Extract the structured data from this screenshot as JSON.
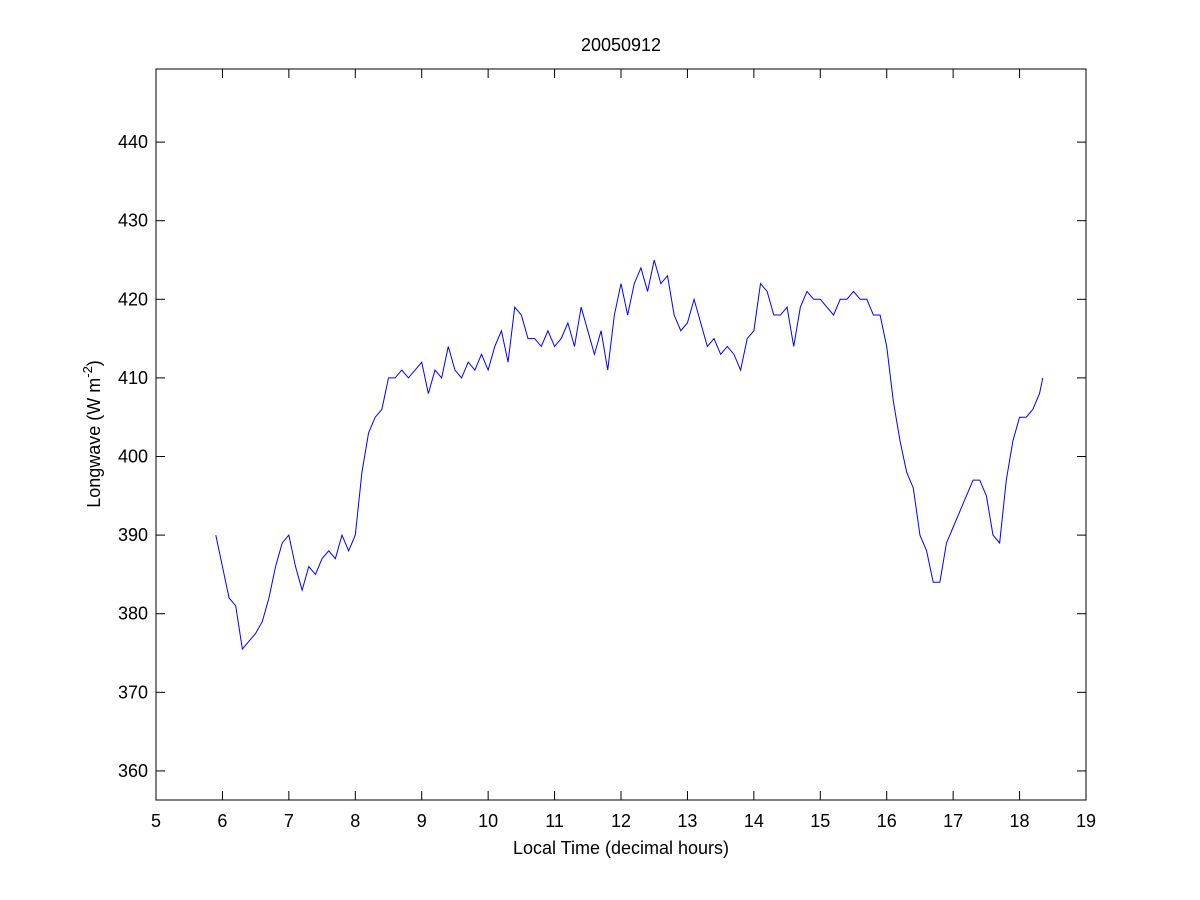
{
  "chart_data": {
    "type": "line",
    "title": "20050912",
    "xlabel": "Local Time (decimal hours)",
    "ylabel": {
      "text": "Longwave (W m",
      "sup": "-2",
      "after": ")"
    },
    "xlim": [
      5,
      19
    ],
    "xticks": [
      5,
      6,
      7,
      8,
      9,
      10,
      11,
      12,
      13,
      14,
      15,
      16,
      17,
      18,
      19
    ],
    "ylim": [
      356.3,
      449.3
    ],
    "yticks": [
      360,
      370,
      380,
      390,
      400,
      410,
      420,
      430,
      440
    ],
    "grid": false,
    "x": [
      5.9,
      6.0,
      6.1,
      6.2,
      6.3,
      6.4,
      6.5,
      6.6,
      6.7,
      6.8,
      6.9,
      7.0,
      7.1,
      7.2,
      7.3,
      7.4,
      7.5,
      7.6,
      7.7,
      7.8,
      7.9,
      8.0,
      8.1,
      8.2,
      8.3,
      8.4,
      8.5,
      8.6,
      8.7,
      8.8,
      8.9,
      9.0,
      9.1,
      9.2,
      9.3,
      9.4,
      9.5,
      9.6,
      9.7,
      9.8,
      9.9,
      10.0,
      10.1,
      10.2,
      10.3,
      10.4,
      10.5,
      10.6,
      10.7,
      10.8,
      10.9,
      11.0,
      11.1,
      11.2,
      11.3,
      11.4,
      11.5,
      11.6,
      11.7,
      11.8,
      11.9,
      12.0,
      12.1,
      12.2,
      12.3,
      12.4,
      12.5,
      12.6,
      12.7,
      12.8,
      12.9,
      13.0,
      13.1,
      13.2,
      13.3,
      13.4,
      13.5,
      13.6,
      13.7,
      13.8,
      13.9,
      14.0,
      14.1,
      14.2,
      14.3,
      14.4,
      14.5,
      14.6,
      14.7,
      14.8,
      14.9,
      15.0,
      15.1,
      15.2,
      15.3,
      15.4,
      15.5,
      15.6,
      15.7,
      15.8,
      15.9,
      16.0,
      16.1,
      16.2,
      16.3,
      16.4,
      16.5,
      16.6,
      16.7,
      16.8,
      16.9,
      17.0,
      17.1,
      17.2,
      17.3,
      17.4,
      17.5,
      17.6,
      17.7,
      17.8,
      17.9,
      18.0,
      18.1,
      18.2,
      18.3,
      18.35
    ],
    "series": [
      {
        "color": "#0000ff",
        "values": [
          390,
          386,
          382,
          381,
          375.5,
          376.5,
          377.5,
          379,
          382,
          386,
          389,
          390,
          386,
          383,
          386,
          385,
          387,
          388,
          387,
          390,
          388,
          390,
          398,
          403,
          405,
          406,
          410,
          410,
          411,
          410,
          411,
          412,
          408,
          411,
          410,
          414,
          411,
          410,
          412,
          411,
          413,
          411,
          414,
          416,
          412,
          419,
          418,
          415,
          415,
          414,
          416,
          414,
          415,
          417,
          414,
          419,
          416,
          413,
          416,
          411,
          418,
          422,
          418,
          422,
          424,
          421,
          425,
          422,
          423,
          418,
          416,
          417,
          420,
          417,
          414,
          415,
          413,
          414,
          413,
          411,
          415,
          416,
          422,
          421,
          418,
          418,
          419,
          414,
          419,
          421,
          420,
          420,
          419,
          418,
          420,
          420,
          421,
          420,
          420,
          418,
          418,
          414,
          407,
          402,
          398,
          396,
          390,
          388,
          384,
          384,
          389,
          391,
          393,
          395,
          397,
          397,
          395,
          390,
          389,
          397,
          402,
          405,
          405,
          406,
          408,
          410
        ]
      }
    ]
  }
}
